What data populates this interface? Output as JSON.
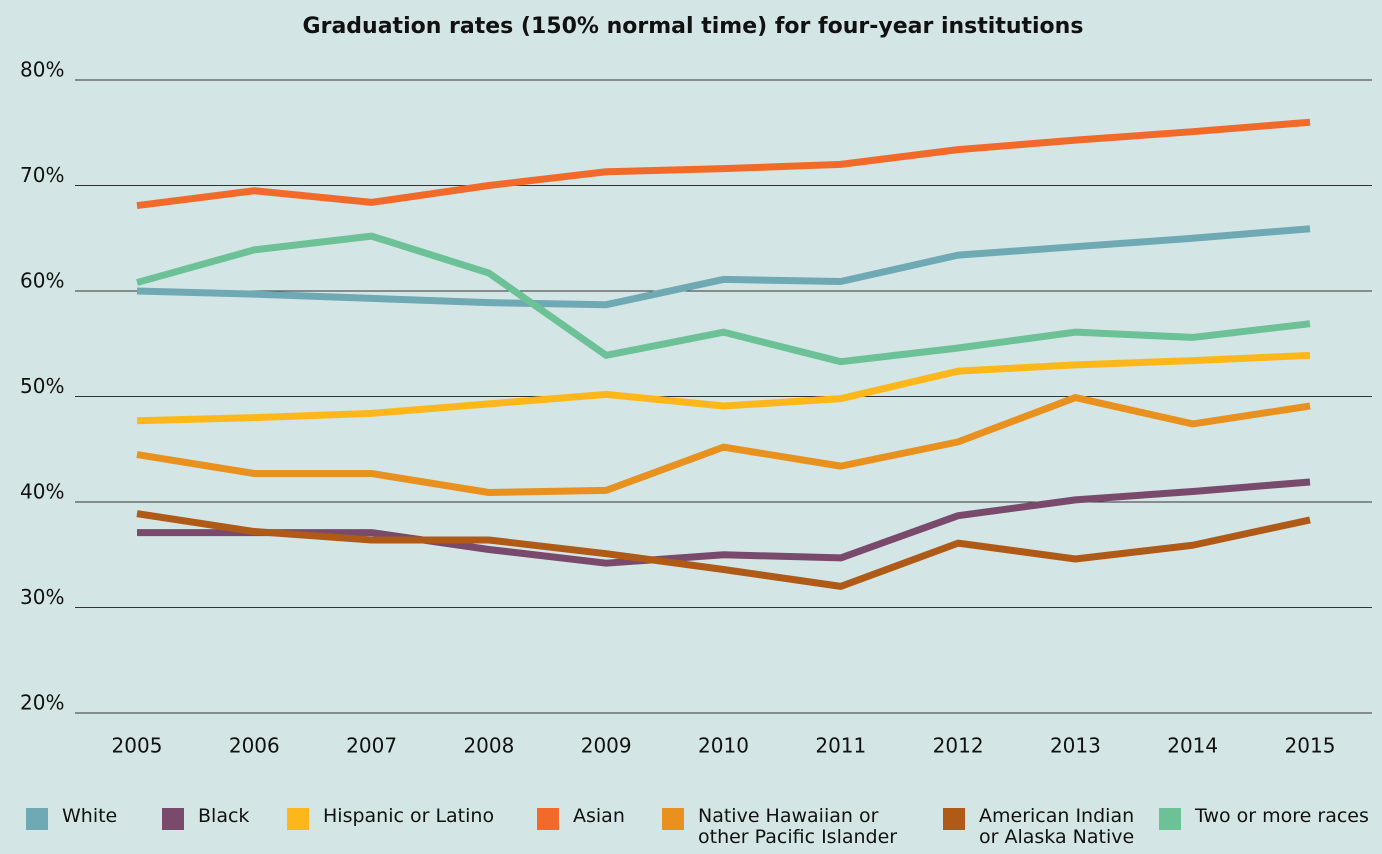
{
  "chart_data": {
    "type": "line",
    "title": "Graduation rates (150% normal time) for four-year institutions",
    "categories": [
      "2005",
      "2006",
      "2007",
      "2008",
      "2009",
      "2010",
      "2011",
      "2012",
      "2013",
      "2014",
      "2015"
    ],
    "ylim": [
      20,
      80
    ],
    "yticks": [
      {
        "value": 20,
        "label": "20%"
      },
      {
        "value": 30,
        "label": "30%"
      },
      {
        "value": 40,
        "label": "40%"
      },
      {
        "value": 50,
        "label": "50%"
      },
      {
        "value": 60,
        "label": "60%"
      },
      {
        "value": 70,
        "label": "70%"
      },
      {
        "value": 80,
        "label": "80%"
      }
    ],
    "grid": true,
    "legend": "bottom",
    "series": [
      {
        "name": "White",
        "color": "#6fa9b4",
        "values": [
          60.0,
          59.7,
          59.3,
          58.9,
          58.7,
          61.1,
          60.9,
          63.4,
          64.2,
          65.0,
          65.9
        ]
      },
      {
        "name": "Black",
        "color": "#7a4a6c",
        "values": [
          37.1,
          37.1,
          37.1,
          35.5,
          34.2,
          35.0,
          34.7,
          38.7,
          40.2,
          41.0,
          41.9
        ]
      },
      {
        "name": "Hispanic or Latino",
        "color": "#fdb71a",
        "values": [
          47.7,
          48.0,
          48.4,
          49.3,
          50.2,
          49.1,
          49.8,
          52.4,
          53.0,
          53.4,
          53.9
        ]
      },
      {
        "name": "Asian",
        "color": "#f26a2a",
        "values": [
          68.1,
          69.5,
          68.4,
          70.0,
          71.3,
          71.6,
          72.0,
          73.4,
          74.3,
          75.1,
          76.0
        ]
      },
      {
        "name": "Native Hawaiian or other Pacific Islander",
        "color": "#e8911f",
        "values": [
          44.5,
          42.7,
          42.7,
          40.9,
          41.1,
          45.2,
          43.4,
          45.7,
          49.9,
          47.4,
          49.1
        ]
      },
      {
        "name": "American Indian or Alaska Native",
        "color": "#b05a17",
        "values": [
          38.9,
          37.2,
          36.4,
          36.4,
          35.1,
          33.6,
          32.0,
          36.1,
          34.6,
          35.9,
          38.3
        ]
      },
      {
        "name": "Two or more races",
        "color": "#6cc197",
        "values": [
          60.8,
          63.9,
          65.2,
          61.7,
          53.9,
          56.1,
          53.3,
          54.6,
          56.1,
          55.6,
          56.9
        ]
      }
    ]
  }
}
